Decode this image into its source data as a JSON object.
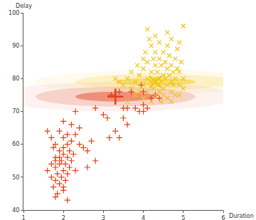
{
  "chart_data": {
    "type": "scatter",
    "xlabel": "Duration",
    "ylabel": "Delay",
    "xlim": [
      1,
      6
    ],
    "ylim": [
      40,
      100
    ],
    "xticks": [
      1,
      2,
      3,
      4,
      5,
      6
    ],
    "yticks": [
      40,
      50,
      60,
      70,
      80,
      90,
      100
    ],
    "grid": false,
    "series": [
      {
        "color": "#e0401a",
        "marker": "cross",
        "center": {
          "x": 3.3,
          "y": 74.5
        },
        "spread": {
          "x": 1.0,
          "y": 1.5
        },
        "x": [
          1.6,
          1.7,
          1.7,
          1.75,
          1.8,
          1.8,
          1.8,
          1.8,
          1.8,
          1.85,
          1.85,
          1.9,
          1.9,
          1.9,
          1.9,
          1.95,
          1.95,
          2.0,
          2.0,
          2.0,
          2.0,
          2.0,
          2.05,
          2.05,
          2.1,
          2.1,
          2.1,
          2.1,
          2.15,
          2.15,
          2.2,
          2.2,
          2.2,
          2.25,
          2.3,
          2.3,
          1.7,
          1.6,
          1.75,
          2.0,
          2.4,
          2.4,
          2.5,
          2.6,
          2.7,
          2.8,
          2.6,
          2.3,
          2.8,
          3.0,
          3.1,
          3.15,
          3.3,
          3.4,
          3.5,
          3.6,
          3.5,
          3.6,
          3.8,
          3.9,
          4.0,
          4.0,
          4.1,
          4.2,
          4.3,
          4.4,
          3.7,
          3.4,
          3.2,
          4.0,
          3.95,
          1.8,
          2.0,
          1.9,
          2.1
        ],
        "values": [
          52,
          50,
          54,
          47,
          44,
          49,
          53,
          56,
          60,
          51,
          45,
          54,
          58,
          48,
          64,
          50,
          55,
          52,
          57,
          59,
          46,
          62,
          49,
          54,
          51,
          56,
          60,
          43,
          58,
          53,
          55,
          61,
          66,
          57,
          52,
          63,
          62,
          64,
          59,
          67,
          60,
          65,
          59,
          58,
          61,
          55,
          53,
          70,
          71,
          69,
          68,
          62,
          64,
          62,
          68,
          66,
          71,
          71,
          71,
          70,
          72,
          70,
          71,
          74,
          75,
          74,
          76,
          76,
          75,
          76,
          78,
          55,
          47,
          56,
          63
        ]
      },
      {
        "color": "#f2c40c",
        "marker": "x",
        "center": {
          "x": 4.3,
          "y": 79
        },
        "spread": {
          "x": 1.0,
          "y": 1.2
        },
        "x": [
          3.5,
          3.6,
          3.7,
          3.7,
          3.8,
          3.8,
          3.85,
          3.9,
          3.9,
          4.0,
          4.0,
          4.0,
          4.05,
          4.1,
          4.1,
          4.1,
          4.15,
          4.2,
          4.2,
          4.2,
          4.25,
          4.25,
          4.3,
          4.3,
          4.3,
          4.3,
          4.35,
          4.35,
          4.4,
          4.4,
          4.4,
          4.4,
          4.45,
          4.45,
          4.5,
          4.5,
          4.5,
          4.5,
          4.55,
          4.55,
          4.6,
          4.6,
          4.6,
          4.6,
          4.65,
          4.65,
          4.7,
          4.7,
          4.7,
          4.7,
          4.75,
          4.75,
          4.8,
          4.8,
          4.8,
          4.85,
          4.85,
          4.9,
          4.9,
          4.95,
          5.0,
          5.0,
          4.6,
          4.9,
          4.45,
          4.2,
          3.6,
          3.4,
          3.3,
          4.0,
          4.7,
          4.9,
          5.0,
          4.1,
          4.3
        ],
        "values": [
          78,
          80,
          77,
          82,
          75,
          79,
          84,
          76,
          81,
          74,
          78,
          83,
          88,
          80,
          76,
          85,
          92,
          79,
          82,
          90,
          77,
          86,
          80,
          84,
          75,
          93,
          78,
          82,
          76,
          80,
          86,
          91,
          79,
          84,
          77,
          81,
          88,
          75,
          80,
          85,
          78,
          83,
          90,
          74,
          81,
          87,
          76,
          79,
          84,
          92,
          82,
          78,
          80,
          86,
          75,
          83,
          89,
          78,
          82,
          85,
          96,
          80,
          94,
          91,
          73,
          73,
          73,
          79,
          80,
          86,
          73,
          75,
          77,
          95,
          88
        ]
      }
    ]
  }
}
